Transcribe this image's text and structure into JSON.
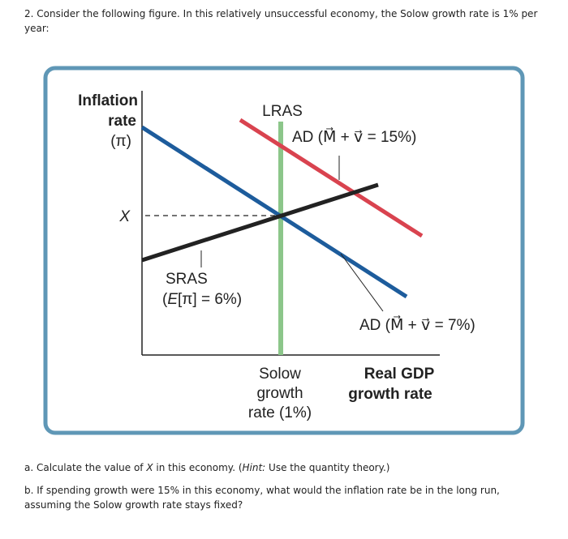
{
  "question": {
    "intro": "2. Consider the following figure. In this relatively unsuccessful economy, the Solow growth rate is 1% per year:",
    "figure": {
      "y_axis_label": [
        "Inflation",
        "rate",
        "(π)"
      ],
      "x_marker": "X",
      "lras_label": "LRAS",
      "ad_high_label": "AD (M⃗ + v⃗ = 15%)",
      "sras_label": [
        "SRAS",
        "(",
        "E",
        "[π] = 6%)"
      ],
      "ad_low_label": "AD (M⃗ + v⃗ = 7%)",
      "solow_label": [
        "Solow",
        "growth",
        "rate (1%)"
      ],
      "x_axis_label": [
        "Real GDP",
        "growth rate"
      ]
    },
    "parts": [
      [
        "a. Calculate the value of ",
        "X",
        " in this economy. (",
        "Hint:",
        " Use the quantity theory.)"
      ],
      [
        "b. If spending growth were 15% in this economy, what would the inflation rate be in the long run, assuming the Solow growth rate stays fixed?"
      ]
    ]
  }
}
